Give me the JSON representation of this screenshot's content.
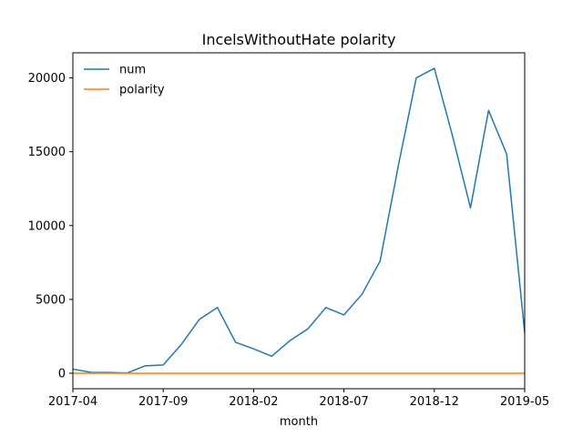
{
  "chart_data": {
    "type": "line",
    "title": "IncelsWithoutHate polarity",
    "xlabel": "month",
    "ylabel": "",
    "x": [
      "2017-04",
      "2017-05",
      "2017-06",
      "2017-07",
      "2017-08",
      "2017-09",
      "2017-10",
      "2017-11",
      "2017-12",
      "2018-01",
      "2018-02",
      "2018-03",
      "2018-04",
      "2018-05",
      "2018-06",
      "2018-07",
      "2018-08",
      "2018-09",
      "2018-10",
      "2018-11",
      "2018-12",
      "2019-01",
      "2019-02",
      "2019-03",
      "2019-04",
      "2019-05"
    ],
    "x_ticks": [
      "2017-04",
      "2017-09",
      "2018-02",
      "2018-07",
      "2018-12",
      "2019-05"
    ],
    "y_ticks": [
      0,
      5000,
      10000,
      15000,
      20000
    ],
    "ylim": [
      -1050,
      21700
    ],
    "series": [
      {
        "name": "num",
        "color": "#1f77b4",
        "values": [
          280,
          60,
          50,
          20,
          500,
          560,
          1950,
          3650,
          4450,
          2100,
          1650,
          1150,
          2200,
          3000,
          4450,
          3950,
          5350,
          7600,
          14000,
          20000,
          20650,
          16100,
          11200,
          17800,
          14850,
          2750
        ]
      },
      {
        "name": "polarity",
        "color": "#ff7f0e",
        "values": [
          0.05,
          0.05,
          0.05,
          0.05,
          0.05,
          0.05,
          0.05,
          0.05,
          0.05,
          0.05,
          0.05,
          0.05,
          0.05,
          0.05,
          0.05,
          0.05,
          0.05,
          0.05,
          0.05,
          0.05,
          0.05,
          0.05,
          0.05,
          0.05,
          0.05,
          0.05
        ]
      }
    ],
    "legend": "top-left",
    "grid": false
  }
}
